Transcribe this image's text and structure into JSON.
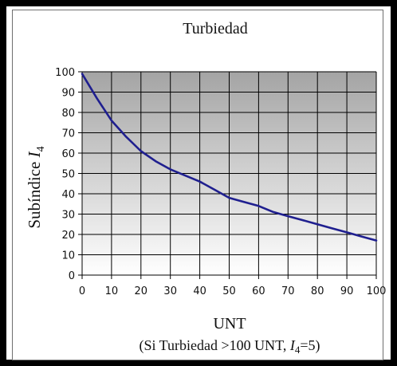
{
  "chart_data": {
    "type": "line",
    "title": "Turbiedad",
    "xlabel": "UNT",
    "xlabel_note": "(Si Turbiedad >100 UNT, ",
    "xlabel_note_var": "I",
    "xlabel_note_sub": "4",
    "xlabel_note_end": "=5)",
    "ylabel": "Subíndice ",
    "ylabel_var": "I",
    "ylabel_sub": "4",
    "xlim": [
      0,
      100
    ],
    "ylim": [
      0,
      100
    ],
    "xticks": [
      0,
      10,
      20,
      30,
      40,
      50,
      60,
      70,
      80,
      90,
      100
    ],
    "yticks": [
      0,
      10,
      20,
      30,
      40,
      50,
      60,
      70,
      80,
      90,
      100
    ],
    "grid": true,
    "legend": "none",
    "x": [
      0,
      5,
      10,
      15,
      20,
      25,
      30,
      35,
      40,
      45,
      50,
      55,
      60,
      65,
      70,
      75,
      80,
      85,
      90,
      95,
      100
    ],
    "series": [
      {
        "values": [
          99,
          87,
          76,
          68,
          61,
          56,
          52,
          49,
          46,
          42,
          38,
          36,
          34,
          31,
          29,
          27,
          25,
          23,
          21,
          19,
          17
        ]
      }
    ],
    "colors": {
      "line": "#1f1f8f",
      "grid": "#000000",
      "plot_top": "#a4a4a4",
      "plot_bottom": "#ffffff"
    }
  }
}
